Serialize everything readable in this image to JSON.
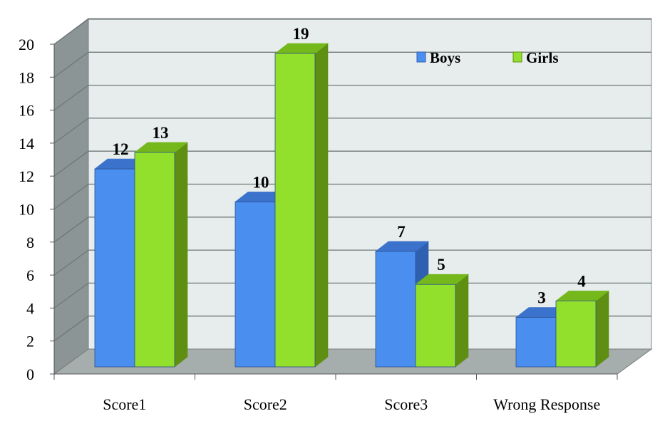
{
  "chart_data": {
    "type": "bar",
    "categories": [
      "Score1",
      "Score2",
      "Score3",
      "Wrong Response"
    ],
    "series": [
      {
        "name": "Boys",
        "values": [
          12,
          10,
          7,
          3
        ],
        "color": "#4a8fef",
        "side": "#2e5fb0",
        "top": "#3a72cc"
      },
      {
        "name": "Girls",
        "values": [
          13,
          19,
          5,
          4
        ],
        "color": "#92e02c",
        "side": "#5e8f12",
        "top": "#74b81c"
      }
    ],
    "ylim": [
      0,
      20
    ],
    "yticks": [
      0,
      2,
      4,
      6,
      8,
      10,
      12,
      14,
      16,
      18,
      20
    ],
    "grid": true,
    "legend": "top-right",
    "style": "3d-clustered-column"
  }
}
